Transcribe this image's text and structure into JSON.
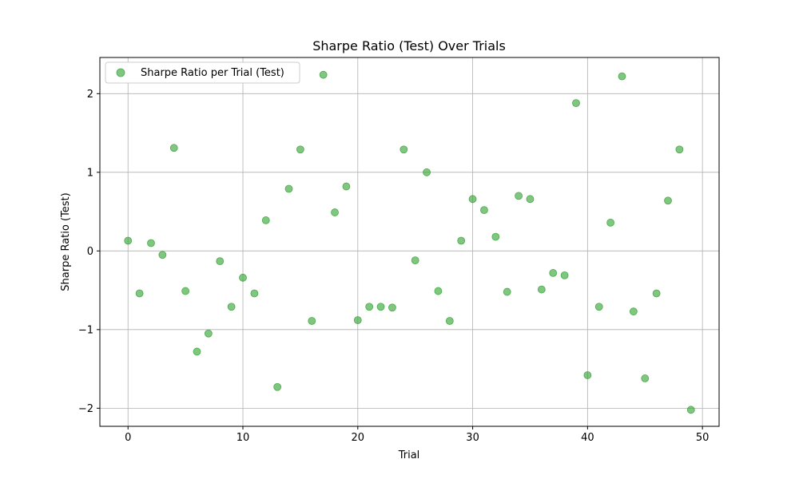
{
  "chart_data": {
    "type": "scatter",
    "title": "Sharpe Ratio (Test) Over Trials",
    "xlabel": "Trial",
    "ylabel": "Sharpe Ratio (Test)",
    "xlim": [
      -2.45,
      51.45
    ],
    "ylim": [
      -2.23,
      2.46
    ],
    "xticks": [
      0,
      10,
      20,
      30,
      40,
      50
    ],
    "yticks": [
      -2,
      -1,
      0,
      1,
      2
    ],
    "xtick_labels": [
      "0",
      "10",
      "20",
      "30",
      "40",
      "50"
    ],
    "ytick_labels": [
      "−2",
      "−1",
      "0",
      "1",
      "2"
    ],
    "grid": true,
    "legend_position": "upper-left",
    "series": [
      {
        "name": "Sharpe Ratio per Trial (Test)",
        "color": "#2ca02c",
        "x": [
          0,
          1,
          2,
          3,
          4,
          5,
          6,
          7,
          8,
          9,
          10,
          11,
          12,
          13,
          14,
          15,
          16,
          17,
          18,
          19,
          20,
          21,
          22,
          23,
          24,
          25,
          26,
          27,
          28,
          29,
          30,
          31,
          32,
          33,
          34,
          35,
          36,
          37,
          38,
          39,
          40,
          41,
          42,
          43,
          44,
          45,
          46,
          47,
          48,
          49
        ],
        "y": [
          0.13,
          -0.54,
          0.1,
          -0.05,
          1.31,
          -0.51,
          -1.28,
          -1.05,
          -0.13,
          -0.71,
          -0.34,
          -0.54,
          0.39,
          -1.73,
          0.79,
          1.29,
          -0.89,
          2.24,
          0.49,
          0.82,
          -0.88,
          -0.71,
          -0.71,
          -0.72,
          1.29,
          -0.12,
          1.0,
          -0.51,
          -0.89,
          0.13,
          0.66,
          0.52,
          0.18,
          -0.52,
          0.7,
          0.66,
          -0.49,
          -0.28,
          -0.31,
          1.88,
          -1.58,
          -0.71,
          0.36,
          2.22,
          -0.77,
          -1.62,
          -0.54,
          0.64,
          1.29,
          -2.02
        ]
      }
    ]
  }
}
